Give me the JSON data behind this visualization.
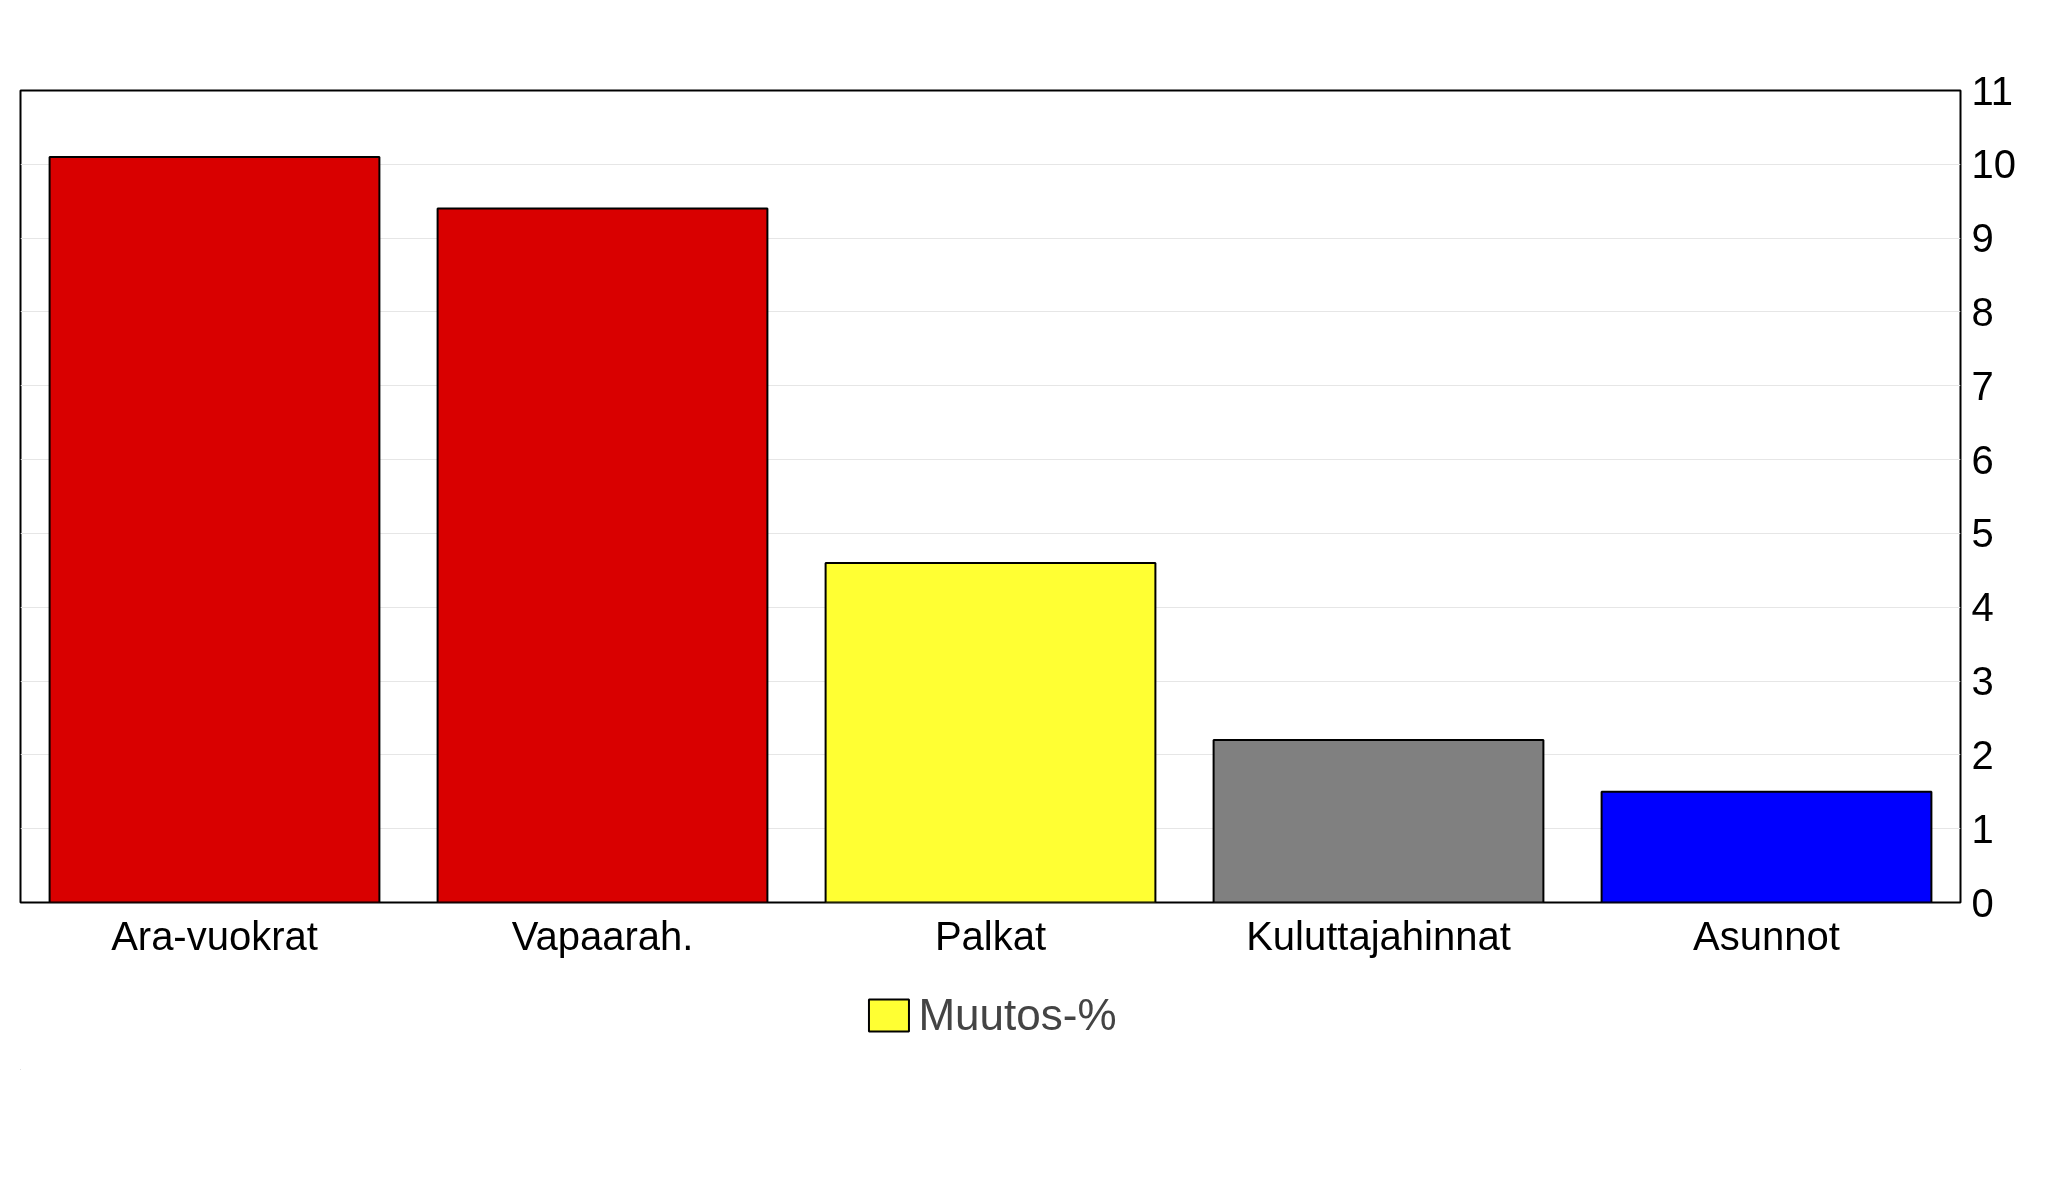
{
  "chart_data": {
    "type": "bar",
    "categories": [
      "Ara-vuokrat",
      "Vapaarah.",
      "Palkat",
      "Kuluttajahinnat",
      "Asunnot"
    ],
    "series": [
      {
        "name": "Muutos-%",
        "color": "#ffff33",
        "colors": [
          "#d90000",
          "#d90000",
          "#ffff33",
          "#808080",
          "#0000ff"
        ],
        "values": [
          10.1,
          9.4,
          4.6,
          2.2,
          1.5
        ]
      }
    ],
    "ylim": [
      0,
      11
    ],
    "yticks": [
      0,
      1,
      2,
      3,
      4,
      5,
      6,
      7,
      8,
      9,
      10,
      11
    ],
    "grid": "y",
    "legend": "bottom"
  }
}
